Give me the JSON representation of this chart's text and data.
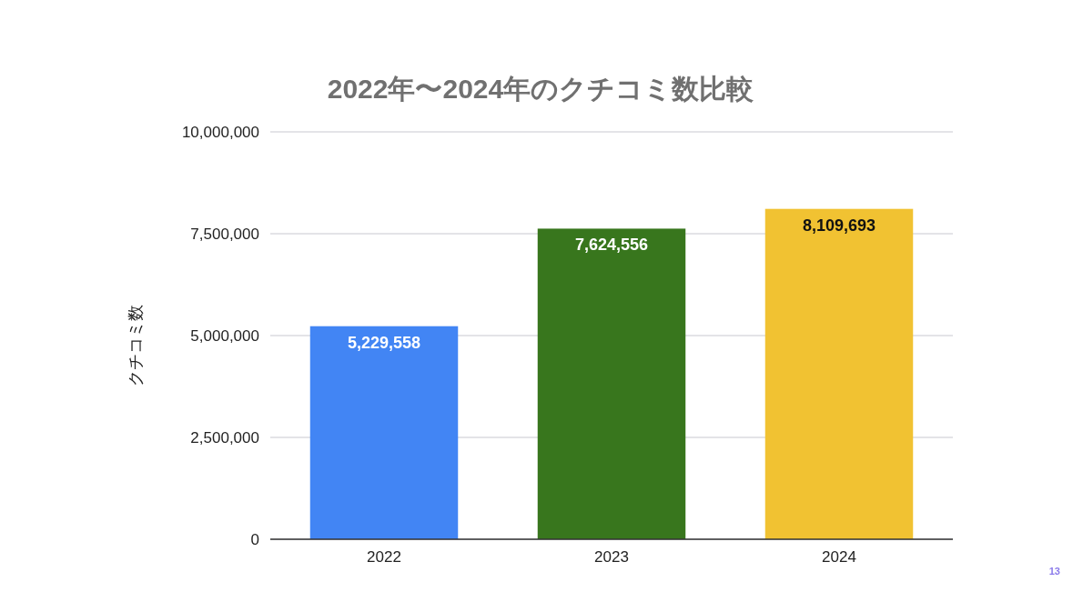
{
  "chart_data": {
    "type": "bar",
    "title": "2022年〜2024年のクチコミ数比較",
    "ylabel": "クチコミ数",
    "categories": [
      "2022",
      "2023",
      "2024"
    ],
    "values": [
      5229558,
      7624556,
      8109693
    ],
    "colors": [
      "#4285f4",
      "#38761d",
      "#f1c232"
    ],
    "ylim": [
      0,
      10000000
    ],
    "yticks": [
      0,
      {
        "value": 2500000,
        "label": "2,500,000"
      },
      {
        "value": 5000000,
        "label": "5,000,000"
      },
      {
        "value": 7500000,
        "label": "7,500,000"
      },
      {
        "value": 10000000,
        "label": "10,000,000"
      }
    ],
    "value_labels": [
      "5,229,558",
      "7,624,556",
      "8,109,693"
    ],
    "grid": "y",
    "annotations": [
      "13"
    ]
  }
}
